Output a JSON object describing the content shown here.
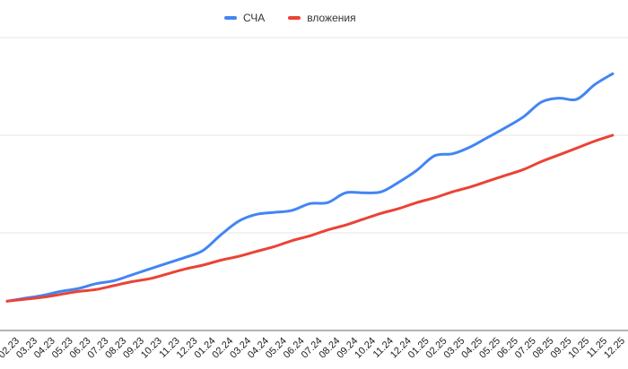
{
  "legend": {
    "items": [
      {
        "label": "СЧА",
        "color": "#4285f4"
      },
      {
        "label": "вложения",
        "color": "#ea4335"
      }
    ]
  },
  "chart_data": {
    "type": "line",
    "smooth": true,
    "title": "",
    "xlabel": "",
    "ylabel": "",
    "x_labels": [
      "02.23",
      "03.23",
      "04.23",
      "05.23",
      "06.23",
      "07.23",
      "08.23",
      "09.23",
      "10.23",
      "11.23",
      "12.23",
      "01.24",
      "02.24",
      "03.24",
      "04.24",
      "05.24",
      "06.24",
      "07.24",
      "08.24",
      "09.24",
      "10.24",
      "11.24",
      "12.24",
      "01.25",
      "02.25",
      "03.25",
      "04.25",
      "05.25",
      "06.25",
      "07.25",
      "08.25",
      "09.25",
      "10.25",
      "11.25",
      "12.25"
    ],
    "series": [
      {
        "name": "СЧА",
        "color": "#4285f4",
        "values": [
          0.3,
          0.33,
          0.36,
          0.4,
          0.43,
          0.48,
          0.51,
          0.57,
          0.63,
          0.69,
          0.75,
          0.82,
          0.98,
          1.12,
          1.19,
          1.21,
          1.23,
          1.3,
          1.31,
          1.41,
          1.41,
          1.42,
          1.52,
          1.64,
          1.79,
          1.81,
          1.88,
          1.98,
          2.08,
          2.19,
          2.34,
          2.38,
          2.37,
          2.52,
          2.63
        ]
      },
      {
        "name": "вложения",
        "color": "#ea4335",
        "values": [
          0.3,
          0.32,
          0.34,
          0.37,
          0.4,
          0.42,
          0.46,
          0.5,
          0.53,
          0.58,
          0.63,
          0.67,
          0.72,
          0.76,
          0.81,
          0.86,
          0.92,
          0.97,
          1.03,
          1.08,
          1.14,
          1.2,
          1.25,
          1.31,
          1.36,
          1.42,
          1.47,
          1.53,
          1.59,
          1.65,
          1.73,
          1.8,
          1.87,
          1.94,
          2.0
        ]
      }
    ],
    "y_axis": {
      "labels_visible": false,
      "units": "relative (1 = one gridline interval)",
      "ylim": [
        0,
        3
      ],
      "gridline_values": [
        1,
        2,
        3
      ],
      "baseline_value": 0
    },
    "x_axis": {
      "label_rotation_deg": -45
    },
    "grid": {
      "on": true,
      "gridline_color": "#e6e6e6",
      "baseline_color": "#b3b3b3"
    },
    "legend_position": "top-center",
    "background": "#ffffff",
    "line_width": 3
  }
}
